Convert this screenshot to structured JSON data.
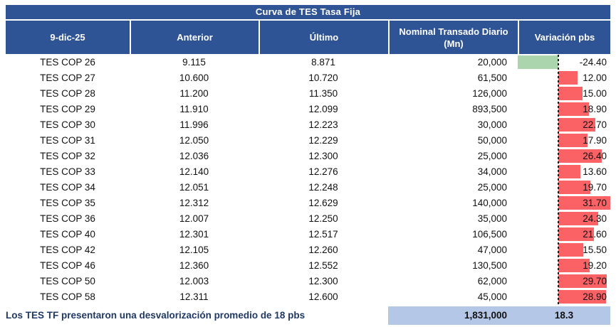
{
  "chart_data": {
    "type": "table",
    "title": "Curva de TES Tasa Fija",
    "columns": [
      "9-dic-25",
      "Anterior",
      "Último",
      "Nominal Transado Diario (Mn)",
      "Variación pbs"
    ],
    "rows": [
      {
        "tes": "TES COP 26",
        "anterior": "9.115",
        "ultimo": "8.871",
        "nominal": "20,000",
        "variacion_pbs": "-24.40"
      },
      {
        "tes": "TES COP 27",
        "anterior": "10.600",
        "ultimo": "10.720",
        "nominal": "61,500",
        "variacion_pbs": "12.00"
      },
      {
        "tes": "TES COP 28",
        "anterior": "11.200",
        "ultimo": "11.350",
        "nominal": "126,000",
        "variacion_pbs": "15.00"
      },
      {
        "tes": "TES COP 29",
        "anterior": "11.910",
        "ultimo": "12.099",
        "nominal": "893,500",
        "variacion_pbs": "18.90"
      },
      {
        "tes": "TES COP 30",
        "anterior": "11.996",
        "ultimo": "12.223",
        "nominal": "30,000",
        "variacion_pbs": "22.70"
      },
      {
        "tes": "TES COP 31",
        "anterior": "12.050",
        "ultimo": "12.229",
        "nominal": "50,000",
        "variacion_pbs": "17.90"
      },
      {
        "tes": "TES COP 32",
        "anterior": "12.036",
        "ultimo": "12.300",
        "nominal": "25,000",
        "variacion_pbs": "26.40"
      },
      {
        "tes": "TES COP 33",
        "anterior": "12.140",
        "ultimo": "12.276",
        "nominal": "34,000",
        "variacion_pbs": "13.60"
      },
      {
        "tes": "TES COP 34",
        "anterior": "12.051",
        "ultimo": "12.248",
        "nominal": "25,000",
        "variacion_pbs": "19.70"
      },
      {
        "tes": "TES COP 35",
        "anterior": "12.312",
        "ultimo": "12.629",
        "nominal": "140,000",
        "variacion_pbs": "31.70"
      },
      {
        "tes": "TES COP 36",
        "anterior": "12.007",
        "ultimo": "12.250",
        "nominal": "35,000",
        "variacion_pbs": "24.30"
      },
      {
        "tes": "TES COP 40",
        "anterior": "12.301",
        "ultimo": "12.517",
        "nominal": "106,500",
        "variacion_pbs": "21.60"
      },
      {
        "tes": "TES COP 42",
        "anterior": "12.105",
        "ultimo": "12.260",
        "nominal": "47,000",
        "variacion_pbs": "15.50"
      },
      {
        "tes": "TES COP 46",
        "anterior": "12.360",
        "ultimo": "12.552",
        "nominal": "130,500",
        "variacion_pbs": "19.20"
      },
      {
        "tes": "TES COP 50",
        "anterior": "12.003",
        "ultimo": "12.300",
        "nominal": "62,000",
        "variacion_pbs": "29.70"
      },
      {
        "tes": "TES COP 58",
        "anterior": "12.311",
        "ultimo": "12.600",
        "nominal": "45,000",
        "variacion_pbs": "28.90"
      }
    ],
    "databar": {
      "column": "Variación pbs",
      "min": -24.4,
      "max": 31.7
    },
    "footer": {
      "note": "Los TES TF presentaron una desvalorización promedio de 18 pbs",
      "total_nominal": "1,831,000",
      "promedio_pbs": "18.3"
    }
  },
  "colors": {
    "header_bg": "#2F5496",
    "bar_positive": "#FB6266",
    "bar_negative": "#ABD5AC",
    "total_bg": "#B4C7E7",
    "note_text": "#1F3864"
  }
}
